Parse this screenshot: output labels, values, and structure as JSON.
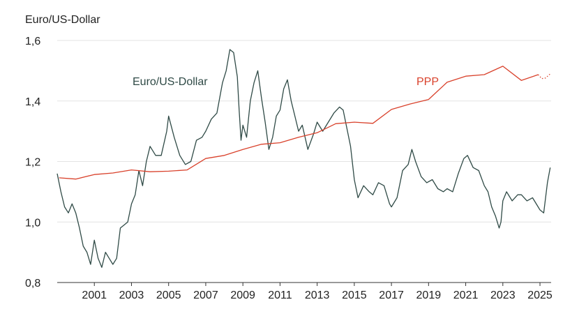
{
  "chart_data": {
    "type": "line",
    "ylabel": "Euro/US-Dollar",
    "ylim": [
      0.8,
      1.6
    ],
    "y_ticks": [
      "0,8",
      "1,0",
      "1,2",
      "1,4",
      "1,6"
    ],
    "y_tick_values": [
      0.8,
      1.0,
      1.2,
      1.4,
      1.6
    ],
    "xlim": [
      1999.0,
      2025.6
    ],
    "x_ticks": [
      "2001",
      "2003",
      "2005",
      "2007",
      "2009",
      "2011",
      "2013",
      "2015",
      "2017",
      "2019",
      "2021",
      "2023",
      "2025"
    ],
    "x_tick_values": [
      2001,
      2003,
      2005,
      2007,
      2009,
      2011,
      2013,
      2015,
      2017,
      2019,
      2021,
      2023,
      2025
    ],
    "grid": "horizontal",
    "colors": {
      "fx": "#2f4a46",
      "ppp": "#d9412b",
      "grid": "#e3e3e3",
      "axis": "#333333"
    },
    "series": [
      {
        "name": "Euro/US-Dollar",
        "style": "solid",
        "x": [
          1999.0,
          1999.2,
          1999.4,
          1999.6,
          1999.8,
          2000.0,
          2000.2,
          2000.4,
          2000.6,
          2000.8,
          2001.0,
          2001.2,
          2001.4,
          2001.6,
          2001.8,
          2002.0,
          2002.2,
          2002.4,
          2002.6,
          2002.8,
          2003.0,
          2003.2,
          2003.4,
          2003.6,
          2003.8,
          2004.0,
          2004.3,
          2004.6,
          2004.9,
          2005.0,
          2005.3,
          2005.6,
          2005.9,
          2006.2,
          2006.5,
          2006.8,
          2007.0,
          2007.3,
          2007.6,
          2007.9,
          2008.1,
          2008.3,
          2008.5,
          2008.7,
          2008.8,
          2008.9,
          2009.0,
          2009.2,
          2009.4,
          2009.6,
          2009.8,
          2010.0,
          2010.2,
          2010.4,
          2010.6,
          2010.8,
          2011.0,
          2011.2,
          2011.4,
          2011.6,
          2011.8,
          2012.0,
          2012.2,
          2012.5,
          2012.8,
          2013.0,
          2013.3,
          2013.6,
          2013.9,
          2014.2,
          2014.4,
          2014.6,
          2014.8,
          2015.0,
          2015.2,
          2015.5,
          2015.8,
          2016.0,
          2016.3,
          2016.6,
          2016.9,
          2017.0,
          2017.3,
          2017.6,
          2017.9,
          2018.1,
          2018.3,
          2018.6,
          2018.9,
          2019.2,
          2019.5,
          2019.8,
          2020.0,
          2020.3,
          2020.6,
          2020.9,
          2021.1,
          2021.4,
          2021.7,
          2022.0,
          2022.2,
          2022.4,
          2022.6,
          2022.8,
          2022.9,
          2023.0,
          2023.2,
          2023.5,
          2023.8,
          2024.0,
          2024.3,
          2024.6,
          2024.9,
          2025.0,
          2025.2,
          2025.4,
          2025.55
        ],
        "values": [
          1.16,
          1.1,
          1.05,
          1.03,
          1.06,
          1.03,
          0.98,
          0.92,
          0.9,
          0.86,
          0.94,
          0.88,
          0.85,
          0.9,
          0.88,
          0.86,
          0.88,
          0.98,
          0.99,
          1.0,
          1.06,
          1.09,
          1.17,
          1.12,
          1.2,
          1.25,
          1.22,
          1.22,
          1.3,
          1.35,
          1.28,
          1.22,
          1.19,
          1.2,
          1.27,
          1.28,
          1.3,
          1.34,
          1.36,
          1.46,
          1.5,
          1.57,
          1.56,
          1.48,
          1.37,
          1.27,
          1.32,
          1.28,
          1.4,
          1.46,
          1.5,
          1.41,
          1.33,
          1.24,
          1.28,
          1.35,
          1.37,
          1.44,
          1.47,
          1.4,
          1.35,
          1.3,
          1.32,
          1.24,
          1.29,
          1.33,
          1.3,
          1.33,
          1.36,
          1.38,
          1.37,
          1.31,
          1.25,
          1.14,
          1.08,
          1.12,
          1.1,
          1.09,
          1.13,
          1.12,
          1.06,
          1.05,
          1.08,
          1.17,
          1.19,
          1.24,
          1.2,
          1.15,
          1.13,
          1.14,
          1.11,
          1.1,
          1.11,
          1.1,
          1.16,
          1.21,
          1.22,
          1.18,
          1.17,
          1.12,
          1.1,
          1.05,
          1.02,
          0.98,
          1.0,
          1.07,
          1.1,
          1.07,
          1.09,
          1.09,
          1.07,
          1.08,
          1.05,
          1.04,
          1.03,
          1.13,
          1.18
        ]
      },
      {
        "name": "PPP",
        "style": "solid",
        "x": [
          1999.1,
          2000.0,
          2001.0,
          2002.0,
          2003.0,
          2004.0,
          2005.0,
          2006.0,
          2007.0,
          2008.0,
          2009.0,
          2010.0,
          2011.0,
          2012.0,
          2013.0,
          2014.0,
          2015.0,
          2016.0,
          2017.0,
          2018.0,
          2019.0,
          2020.0,
          2021.0,
          2022.0,
          2023.0,
          2024.0,
          2024.9
        ],
        "values": [
          1.146,
          1.142,
          1.157,
          1.162,
          1.172,
          1.166,
          1.168,
          1.172,
          1.21,
          1.22,
          1.24,
          1.257,
          1.262,
          1.28,
          1.295,
          1.325,
          1.33,
          1.326,
          1.372,
          1.39,
          1.405,
          1.462,
          1.482,
          1.487,
          1.515,
          1.468,
          1.487
        ]
      },
      {
        "name": "",
        "style": "dotted",
        "x": [
          2024.9,
          2025.1,
          2025.3,
          2025.6
        ],
        "values": [
          1.487,
          1.474,
          1.476,
          1.492
        ]
      }
    ],
    "annotations": [
      {
        "text": "Euro/US-Dollar",
        "series": 0
      },
      {
        "text": "PPP",
        "series": 1
      }
    ]
  }
}
